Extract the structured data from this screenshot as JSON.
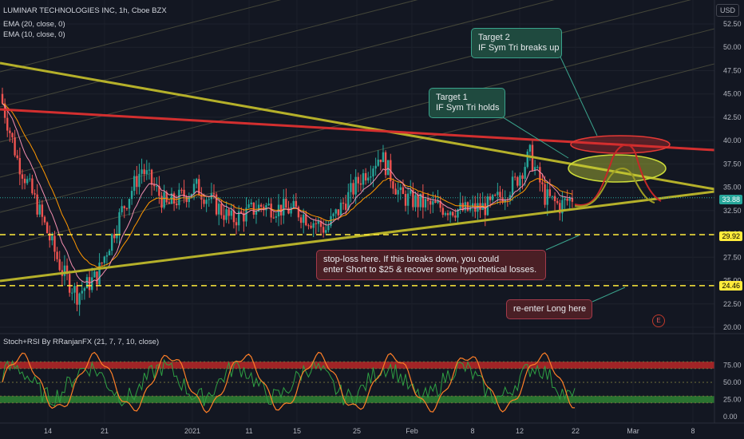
{
  "header": {
    "symbol_line": "LUMINAR TECHNOLOGIES INC, 1h, Cboe BZX",
    "ema20": "EMA (20, close, 0)",
    "ema10": "EMA (10, close, 0)",
    "currency": "USD",
    "stoch_label": "Stoch+RSI By RRanjanFX (21, 7, 7, 10, close)"
  },
  "notes": {
    "target2_line1": "Target 2",
    "target2_line2": "IF Sym Tri breaks up",
    "target1_line1": "Target 1",
    "target1_line2": "IF Sym Tri holds",
    "stop_line1": "stop-loss here. If this breaks down, you could",
    "stop_line2": "enter Short to $25 & recover some hypothetical losses.",
    "reenter": "re-enter Long here",
    "e_mark": "E"
  },
  "price_tags": {
    "last": "33.88",
    "stop": "29.92",
    "reenter": "24.46"
  },
  "colors": {
    "up": "#26a69a",
    "down": "#ef5350",
    "ema20": "#ff9800",
    "ema10": "#f48fb1",
    "triangle": "#b5b02a",
    "resistance": "#d32f2f",
    "dashed": "#ffeb3b",
    "stoch": "#ff7f27",
    "rsi": "#2ea043",
    "channel": "#6b6b4a"
  },
  "chart_data": {
    "type": "candlestick",
    "price_axis": [
      "52.50",
      "50.00",
      "47.50",
      "45.00",
      "42.50",
      "40.00",
      "37.50",
      "35.00",
      "32.50",
      "30.00",
      "27.50",
      "25.00",
      "22.50",
      "20.00"
    ],
    "price_range": [
      20,
      53.5
    ],
    "time_axis": [
      "14",
      "21",
      "2021",
      "11",
      "15",
      "25",
      "Feb",
      "8",
      "12",
      "22",
      "Mar",
      "8"
    ],
    "levels": {
      "stop_loss": 29.92,
      "reenter_long": 24.46,
      "last_price": 33.88
    },
    "osc_axis": [
      "75.00",
      "50.00",
      "25.00",
      "0.00"
    ],
    "osc_range": [
      0,
      100
    ],
    "osc_bands": {
      "overbought": [
        70,
        80
      ],
      "oversold": [
        20,
        30
      ]
    }
  }
}
